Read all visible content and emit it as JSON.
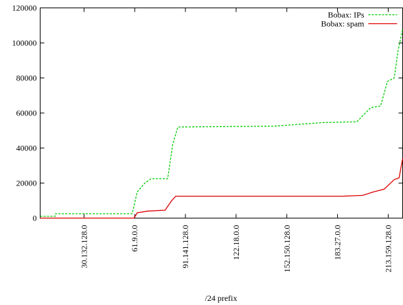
{
  "chart_data": {
    "type": "line",
    "xlabel": "/24 prefix",
    "xlim": [
      270000,
      14570000
    ],
    "xticks": [
      {
        "value": 2000000,
        "label": "30.132.128.0"
      },
      {
        "value": 4000000,
        "label": "61.9.0.0"
      },
      {
        "value": 6000000,
        "label": "91.141.128.0"
      },
      {
        "value": 8000000,
        "label": "122.18.0.0"
      },
      {
        "value": 10000000,
        "label": "152.150.128.0"
      },
      {
        "value": 12000000,
        "label": "183.27.0.0"
      },
      {
        "value": 14000000,
        "label": "213.159.128.0"
      }
    ],
    "ylim": [
      0,
      120000
    ],
    "yticks": [
      0,
      20000,
      40000,
      60000,
      80000,
      100000,
      120000
    ],
    "legend": "top-right",
    "series": [
      {
        "name": "Bobax: IPs",
        "color": "#00cc00",
        "dashed": true,
        "x": [
          270000,
          860000,
          870000,
          3900000,
          4100000,
          4400000,
          4650000,
          5300000,
          5500000,
          5700000,
          9500000,
          11400000,
          12760000,
          12900000,
          13300000,
          13700000,
          13970000,
          14240000,
          14380000,
          14570000
        ],
        "values": [
          1000,
          1000,
          2500,
          2500,
          15000,
          20000,
          22500,
          22500,
          42000,
          52000,
          52500,
          54500,
          55000,
          57000,
          63000,
          64000,
          78000,
          80000,
          95000,
          108000
        ]
      },
      {
        "name": "Bobax: spam",
        "color": "#dd0000",
        "dashed": false,
        "x": [
          270000,
          3970000,
          4100000,
          4500000,
          5200000,
          5460000,
          5620000,
          12200000,
          13000000,
          13430000,
          13840000,
          14240000,
          14430000,
          14570000
        ],
        "values": [
          0,
          0,
          3000,
          4000,
          4500,
          10000,
          12500,
          12500,
          13000,
          15000,
          16500,
          22000,
          23000,
          34000
        ]
      }
    ]
  }
}
